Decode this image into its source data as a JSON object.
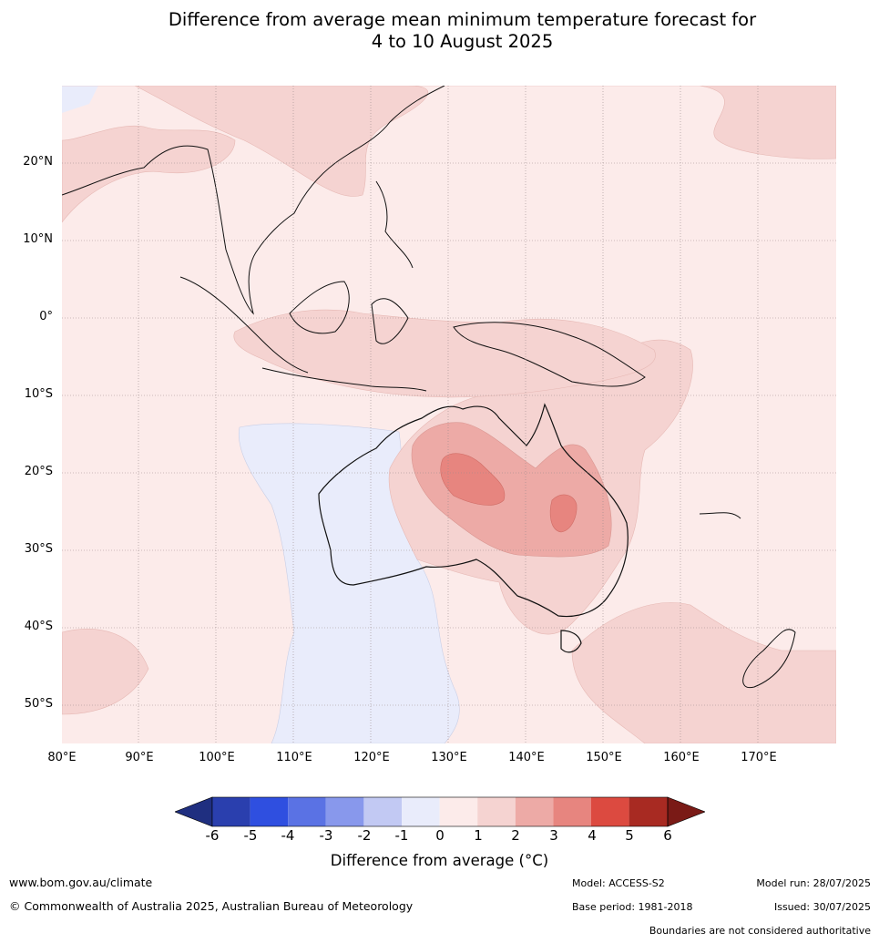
{
  "title": {
    "line1": "Difference from average mean minimum temperature forecast for",
    "line2": "4 to 10 August 2025"
  },
  "axes": {
    "lat_labels": [
      "20°N",
      "10°N",
      "0°",
      "10°S",
      "20°S",
      "30°S",
      "40°S",
      "50°S"
    ],
    "lon_labels": [
      "80°E",
      "90°E",
      "100°E",
      "110°E",
      "120°E",
      "130°E",
      "140°E",
      "150°E",
      "160°E",
      "170°E"
    ]
  },
  "legend": {
    "ticks": [
      "-6",
      "-5",
      "-4",
      "-3",
      "-2",
      "-1",
      "0",
      "1",
      "2",
      "3",
      "4",
      "5",
      "6"
    ],
    "colors": [
      "#1f2f80",
      "#2a3fae",
      "#2f4fe0",
      "#5a72e4",
      "#8898ec",
      "#c2c9f3",
      "#e9ecfb",
      "#fcebea",
      "#f5d3d1",
      "#edaaa6",
      "#e7857f",
      "#dc4a40",
      "#a82a22",
      "#7a1a16"
    ],
    "label": "Difference from average (°C)"
  },
  "footer": {
    "website": "www.bom.gov.au/climate",
    "copyright": "© Commonwealth of Australia 2025, Australian Bureau of Meteorology",
    "model": "Model: ACCESS-S2",
    "model_run": "Model run: 28/07/2025",
    "base_period": "Base period: 1981-2018",
    "issued": "Issued: 30/07/2025",
    "disclaimer": "Boundaries are not considered authoritative"
  }
}
